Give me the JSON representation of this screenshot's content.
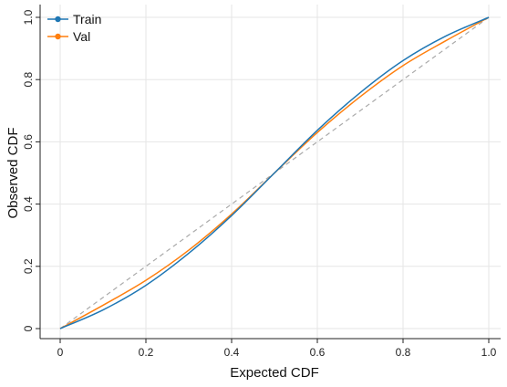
{
  "chart_data": {
    "type": "line",
    "title": "",
    "xlabel": "Expected CDF",
    "ylabel": "Observed CDF",
    "xlim": [
      0,
      1
    ],
    "ylim": [
      0,
      1
    ],
    "x_ticks": [
      0,
      0.2,
      0.4,
      0.6,
      0.8,
      1.0
    ],
    "y_ticks": [
      0,
      0.2,
      0.4,
      0.6,
      0.8,
      1.0
    ],
    "x_tick_labels": [
      "0",
      "0.2",
      "0.4",
      "0.6",
      "0.8",
      "1.0"
    ],
    "y_tick_labels": [
      "0",
      "0.2",
      "0.4",
      "0.6",
      "0.8",
      "1.0"
    ],
    "grid": true,
    "legend": {
      "position": "top-left"
    },
    "reference_line": {
      "style": "dashed",
      "color": "#aaaaaa",
      "x": [
        0,
        1
      ],
      "y": [
        0,
        1
      ]
    },
    "x": [
      0,
      0.1,
      0.2,
      0.3,
      0.4,
      0.5,
      0.6,
      0.7,
      0.8,
      0.9,
      1.0
    ],
    "series": [
      {
        "name": "Train",
        "color": "#1f77b4",
        "values": [
          0.0,
          0.06,
          0.139,
          0.242,
          0.363,
          0.5,
          0.637,
          0.758,
          0.861,
          0.94,
          1.0
        ]
      },
      {
        "name": "Val",
        "color": "#ff7f0e",
        "values": [
          0.0,
          0.075,
          0.155,
          0.252,
          0.368,
          0.5,
          0.63,
          0.745,
          0.845,
          0.925,
          1.0
        ]
      }
    ]
  }
}
